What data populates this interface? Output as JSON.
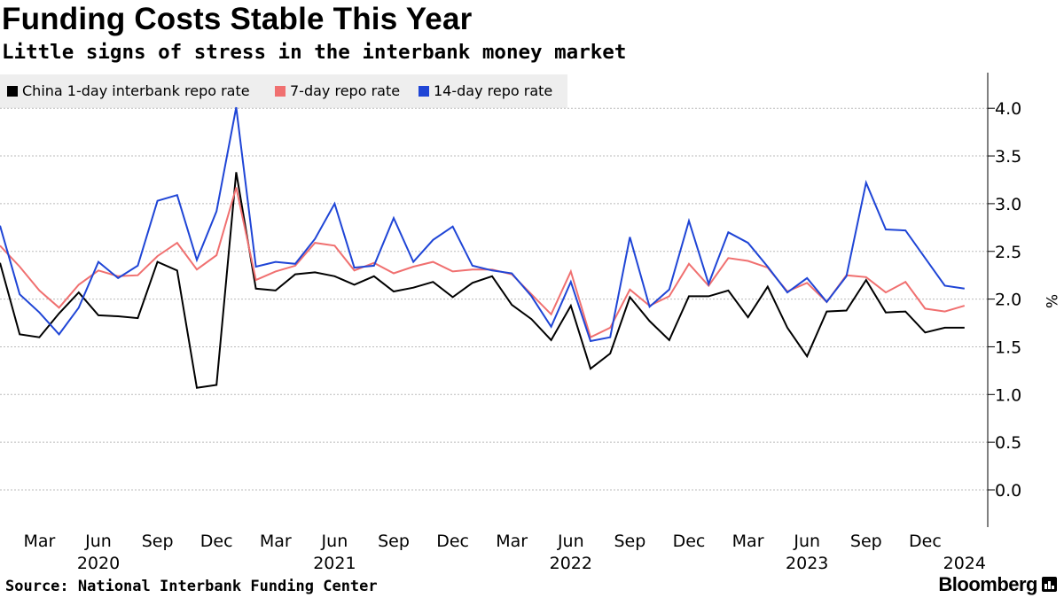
{
  "title": "Funding Costs Stable This Year",
  "subtitle": "Little signs of stress in the interbank money market",
  "source": "Source: National Interbank Funding Center",
  "brand": "Bloomberg",
  "colors": {
    "background": "#ffffff",
    "legend_bg": "#eeeeee",
    "grid": "#bbbbbb"
  },
  "chart_data": {
    "type": "line",
    "title": "Funding Costs Stable This Year",
    "subtitle": "Little signs of stress in the interbank money market",
    "xlabel": "",
    "ylabel": "%",
    "ylim": [
      -0.4,
      4.4
    ],
    "yticks": [
      0.0,
      0.5,
      1.0,
      1.5,
      2.0,
      2.5,
      3.0,
      3.5,
      4.0
    ],
    "ytick_labels": [
      "0.0",
      "0.5",
      "1.0",
      "1.5",
      "2.0",
      "2.5",
      "3.0",
      "3.5",
      "4.0"
    ],
    "grid": true,
    "legend_position": "top-left",
    "x_start": "2020-01",
    "month_ticks": [
      {
        "label": "Mar",
        "index": 2
      },
      {
        "label": "Jun",
        "index": 5
      },
      {
        "label": "Sep",
        "index": 8
      },
      {
        "label": "Dec",
        "index": 11
      },
      {
        "label": "Mar",
        "index": 14
      },
      {
        "label": "Jun",
        "index": 17
      },
      {
        "label": "Sep",
        "index": 20
      },
      {
        "label": "Dec",
        "index": 23
      },
      {
        "label": "Mar",
        "index": 26
      },
      {
        "label": "Jun",
        "index": 29
      },
      {
        "label": "Sep",
        "index": 32
      },
      {
        "label": "Dec",
        "index": 35
      },
      {
        "label": "Mar",
        "index": 38
      },
      {
        "label": "Jun",
        "index": 41
      },
      {
        "label": "Sep",
        "index": 44
      },
      {
        "label": "Dec",
        "index": 47
      }
    ],
    "year_ticks": [
      {
        "label": "2020",
        "index": 5
      },
      {
        "label": "2021",
        "index": 17
      },
      {
        "label": "2022",
        "index": 29
      },
      {
        "label": "2023",
        "index": 41
      },
      {
        "label": "2024",
        "index": 49
      }
    ],
    "series": [
      {
        "name": "China 1-day interbank repo rate",
        "color": "#000000",
        "values": [
          2.38,
          1.63,
          1.6,
          1.85,
          2.07,
          1.83,
          1.82,
          1.8,
          2.39,
          2.3,
          1.07,
          1.1,
          3.33,
          2.11,
          2.09,
          2.26,
          2.28,
          2.24,
          2.15,
          2.24,
          2.08,
          2.12,
          2.18,
          2.02,
          2.17,
          2.24,
          1.94,
          1.79,
          1.57,
          1.93,
          1.27,
          1.43,
          2.02,
          1.77,
          1.57,
          2.03,
          2.03,
          2.09,
          1.81,
          2.13,
          1.7,
          1.4,
          1.87,
          1.88,
          2.2,
          1.86,
          1.87,
          1.65,
          1.7,
          1.7
        ]
      },
      {
        "name": "7-day repo rate",
        "color": "#f07070",
        "values": [
          2.56,
          2.34,
          2.09,
          1.91,
          2.15,
          2.3,
          2.24,
          2.25,
          2.45,
          2.59,
          2.31,
          2.46,
          3.17,
          2.2,
          2.29,
          2.35,
          2.59,
          2.56,
          2.3,
          2.38,
          2.27,
          2.34,
          2.39,
          2.29,
          2.31,
          2.31,
          2.26,
          2.05,
          1.84,
          2.29,
          1.6,
          1.7,
          2.1,
          1.93,
          2.03,
          2.37,
          2.14,
          2.43,
          2.4,
          2.33,
          2.08,
          2.17,
          1.97,
          2.25,
          2.23,
          2.07,
          2.18,
          1.9,
          1.87,
          1.93
        ]
      },
      {
        "name": "14-day repo rate",
        "color": "#1f45d6",
        "values": [
          2.77,
          2.05,
          1.86,
          1.63,
          1.91,
          2.39,
          2.22,
          2.35,
          3.03,
          3.09,
          2.41,
          2.92,
          4.01,
          2.34,
          2.39,
          2.37,
          2.63,
          3.0,
          2.33,
          2.35,
          2.85,
          2.39,
          2.62,
          2.76,
          2.35,
          2.3,
          2.27,
          2.03,
          1.71,
          2.18,
          1.56,
          1.6,
          2.65,
          1.92,
          2.1,
          2.82,
          2.16,
          2.7,
          2.59,
          2.34,
          2.07,
          2.22,
          1.97,
          2.24,
          3.22,
          2.73,
          2.72,
          2.43,
          2.14,
          2.11
        ]
      }
    ]
  }
}
